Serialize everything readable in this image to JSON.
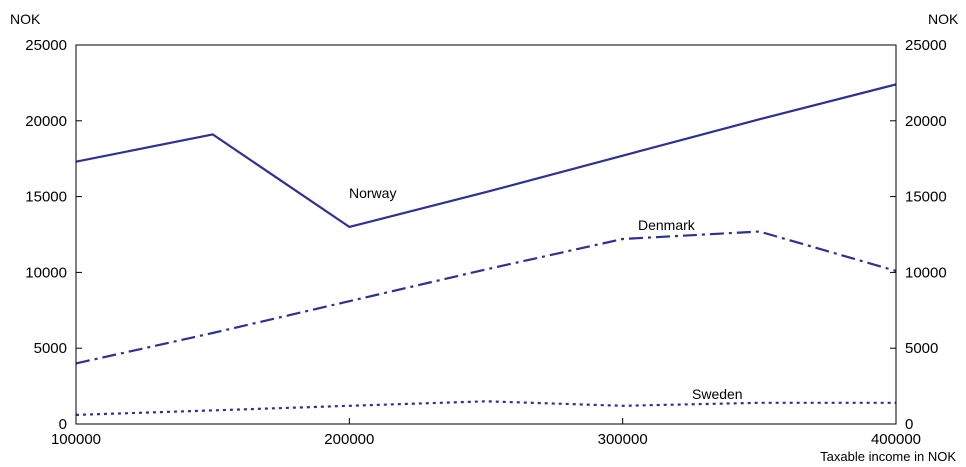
{
  "chart_data": {
    "type": "line",
    "title": "",
    "y_unit_left": "NOK",
    "y_unit_right": "NOK",
    "xlabel": "Taxable income in NOK",
    "ylabel": "",
    "xlim": [
      100000,
      400000
    ],
    "ylim": [
      0,
      25000
    ],
    "x_ticks": [
      100000,
      200000,
      300000,
      400000
    ],
    "y_ticks": [
      0,
      5000,
      10000,
      15000,
      20000,
      25000
    ],
    "grid": false,
    "legend": "none",
    "line_color": "#2e3192",
    "series": [
      {
        "name": "Norway",
        "style": "solid",
        "x": [
          100000,
          150000,
          200000,
          250000,
          300000,
          350000,
          400000
        ],
        "values": [
          17300,
          19100,
          13000,
          15300,
          17700,
          20100,
          22400
        ]
      },
      {
        "name": "Denmark",
        "style": "dash-dot",
        "x": [
          100000,
          150000,
          200000,
          250000,
          300000,
          350000,
          400000
        ],
        "values": [
          4000,
          6000,
          8100,
          10200,
          12200,
          12700,
          10100
        ]
      },
      {
        "name": "Sweden",
        "style": "dotted",
        "x": [
          100000,
          150000,
          200000,
          250000,
          300000,
          350000,
          400000
        ],
        "values": [
          600,
          900,
          1200,
          1500,
          1200,
          1400,
          1400
        ]
      }
    ]
  }
}
